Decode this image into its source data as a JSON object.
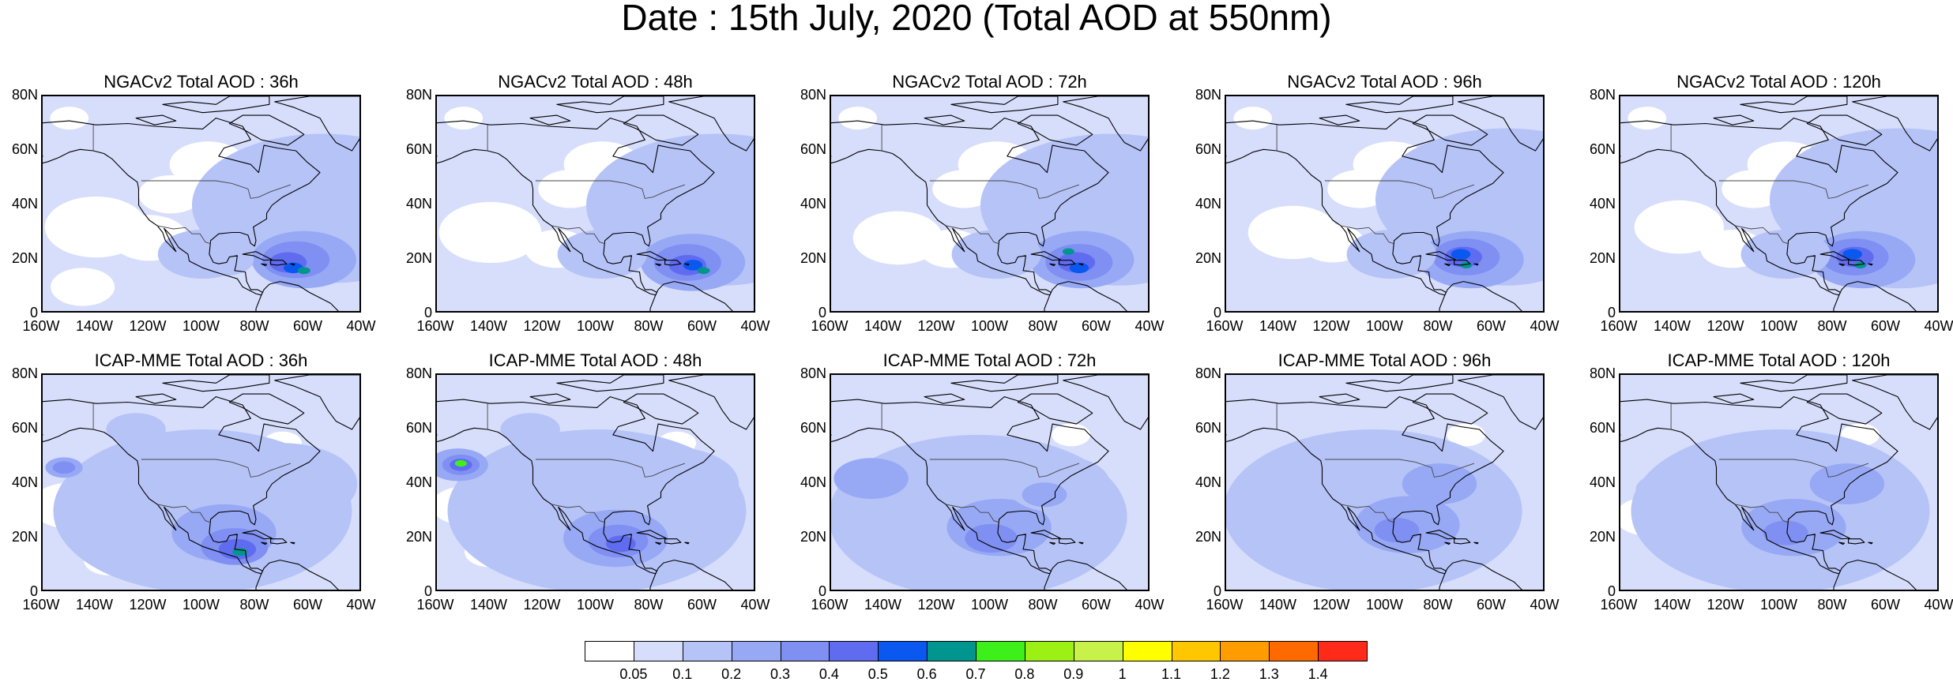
{
  "title": "Date : 15th July, 2020 (Total AOD at 550nm)",
  "y_ticks": [
    "80N",
    "60N",
    "40N",
    "20N",
    "0"
  ],
  "x_ticks": [
    "160W",
    "140W",
    "120W",
    "100W",
    "80W",
    "60W",
    "40W"
  ],
  "panels": [
    {
      "title": "NGACv2 Total AOD : 36h",
      "model": "NGACv2",
      "forecast_hour": "36h"
    },
    {
      "title": "NGACv2 Total AOD : 48h",
      "model": "NGACv2",
      "forecast_hour": "48h"
    },
    {
      "title": "NGACv2 Total AOD : 72h",
      "model": "NGACv2",
      "forecast_hour": "72h"
    },
    {
      "title": "NGACv2 Total AOD : 96h",
      "model": "NGACv2",
      "forecast_hour": "96h"
    },
    {
      "title": "NGACv2 Total AOD : 120h",
      "model": "NGACv2",
      "forecast_hour": "120h"
    },
    {
      "title": "ICAP-MME Total AOD : 36h",
      "model": "ICAP-MME",
      "forecast_hour": "36h"
    },
    {
      "title": "ICAP-MME Total AOD : 48h",
      "model": "ICAP-MME",
      "forecast_hour": "48h"
    },
    {
      "title": "ICAP-MME Total AOD : 72h",
      "model": "ICAP-MME",
      "forecast_hour": "72h"
    },
    {
      "title": "ICAP-MME Total AOD : 96h",
      "model": "ICAP-MME",
      "forecast_hour": "96h"
    },
    {
      "title": "ICAP-MME Total AOD : 120h",
      "model": "ICAP-MME",
      "forecast_hour": "120h"
    }
  ],
  "colorbar": {
    "labels": [
      "0.05",
      "0.1",
      "0.2",
      "0.3",
      "0.4",
      "0.5",
      "0.6",
      "0.7",
      "0.8",
      "0.9",
      "1",
      "1.1",
      "1.2",
      "1.3",
      "1.4"
    ],
    "colors": [
      "#ffffff",
      "#d7defb",
      "#b6c3f7",
      "#97a8f5",
      "#7f8ff2",
      "#5f6cf0",
      "#0a58f0",
      "#00968f",
      "#3ef01a",
      "#9cf014",
      "#c7f24a",
      "#ffff00",
      "#ffc700",
      "#ff9c00",
      "#ff6a00",
      "#ff2a1a"
    ]
  },
  "chart_data": {
    "type": "heatmap",
    "title": "Date : 15th July, 2020 (Total AOD at 550nm)",
    "variable": "Total AOD at 550nm",
    "date": "15th July, 2020",
    "x_range_deg_lon": [
      -160,
      -40
    ],
    "y_range_deg_lat": [
      0,
      80
    ],
    "panels": [
      {
        "model": "NGACv2",
        "hour": "36h",
        "max_AOD_approx": 0.8,
        "hotspot": "Caribbean (Saharan dust plume ~20N, 60-80W)"
      },
      {
        "model": "NGACv2",
        "hour": "48h",
        "max_AOD_approx": 0.8,
        "hotspot": "Caribbean"
      },
      {
        "model": "NGACv2",
        "hour": "72h",
        "max_AOD_approx": 0.8,
        "hotspot": "Caribbean"
      },
      {
        "model": "NGACv2",
        "hour": "96h",
        "max_AOD_approx": 0.8,
        "hotspot": "Caribbean"
      },
      {
        "model": "NGACv2",
        "hour": "120h",
        "max_AOD_approx": 0.8,
        "hotspot": "Caribbean"
      },
      {
        "model": "ICAP-MME",
        "hour": "36h",
        "max_AOD_approx": 0.7,
        "hotspot": "Central America / Yucatan, NE Pacific"
      },
      {
        "model": "ICAP-MME",
        "hour": "48h",
        "max_AOD_approx": 0.8,
        "hotspot": "Central America, NE Pacific ~47N 150W"
      },
      {
        "model": "ICAP-MME",
        "hour": "72h",
        "max_AOD_approx": 0.5,
        "hotspot": "Mexico / Central America"
      },
      {
        "model": "ICAP-MME",
        "hour": "96h",
        "max_AOD_approx": 0.5,
        "hotspot": "Gulf of Mexico region"
      },
      {
        "model": "ICAP-MME",
        "hour": "120h",
        "max_AOD_approx": 0.5,
        "hotspot": "Mexico / Gulf of Mexico"
      }
    ],
    "levels": [
      0.05,
      0.1,
      0.2,
      0.3,
      0.4,
      0.5,
      0.6,
      0.7,
      0.8,
      0.9,
      1,
      1.1,
      1.2,
      1.3,
      1.4
    ]
  }
}
